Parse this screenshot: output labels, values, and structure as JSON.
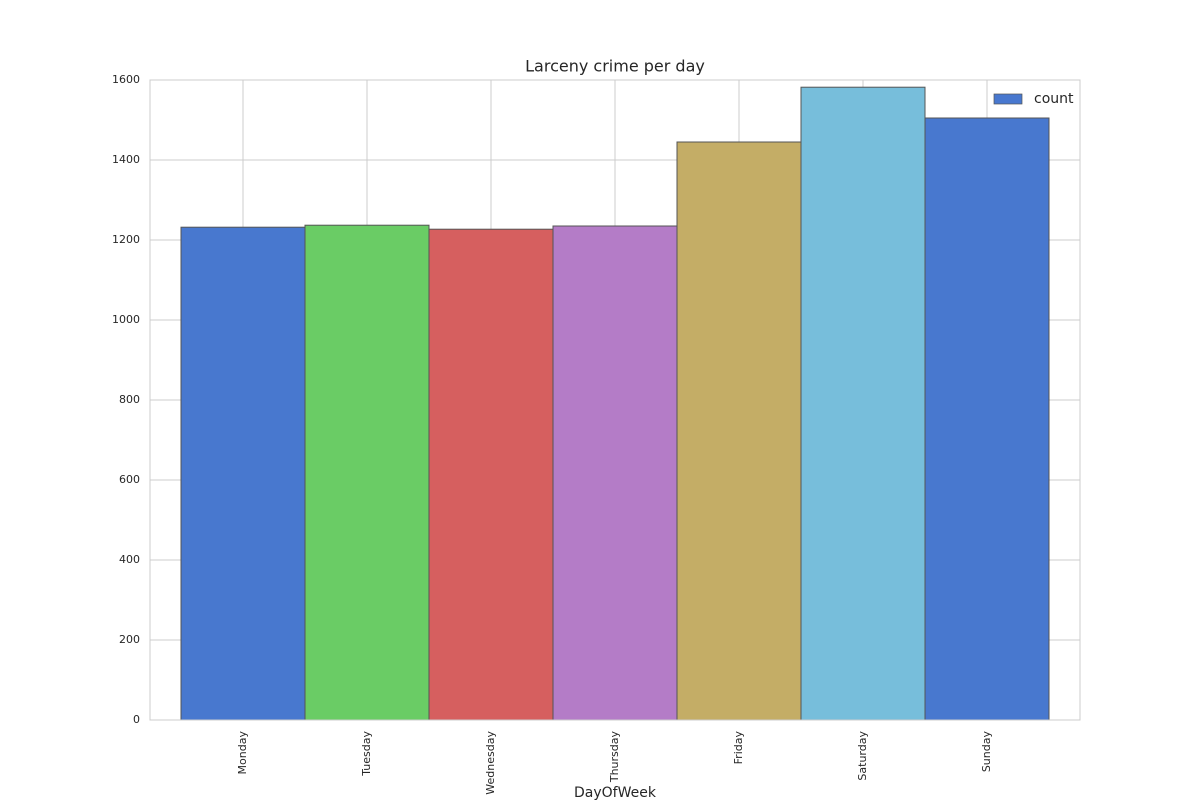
{
  "chart_data": {
    "type": "bar",
    "title": "Larceny crime per day",
    "x_label": "DayOfWeek",
    "categories": [
      "Monday",
      "Tuesday",
      "Wednesday",
      "Thursday",
      "Friday",
      "Saturday",
      "Sunday"
    ],
    "series": [
      {
        "name": "count",
        "colors": [
          "#4878cf",
          "#6acc65",
          "#d65f5f",
          "#b47cc7",
          "#c4ad66",
          "#77bedb",
          "#4878cf"
        ],
        "values": [
          1232,
          1237,
          1227,
          1235,
          1445,
          1582,
          1505
        ]
      }
    ],
    "ylim": [
      0,
      1600
    ],
    "yticks": [
      0,
      200,
      400,
      600,
      800,
      1000,
      1200,
      1400,
      1600
    ],
    "grid": true,
    "legend": "upper right"
  }
}
